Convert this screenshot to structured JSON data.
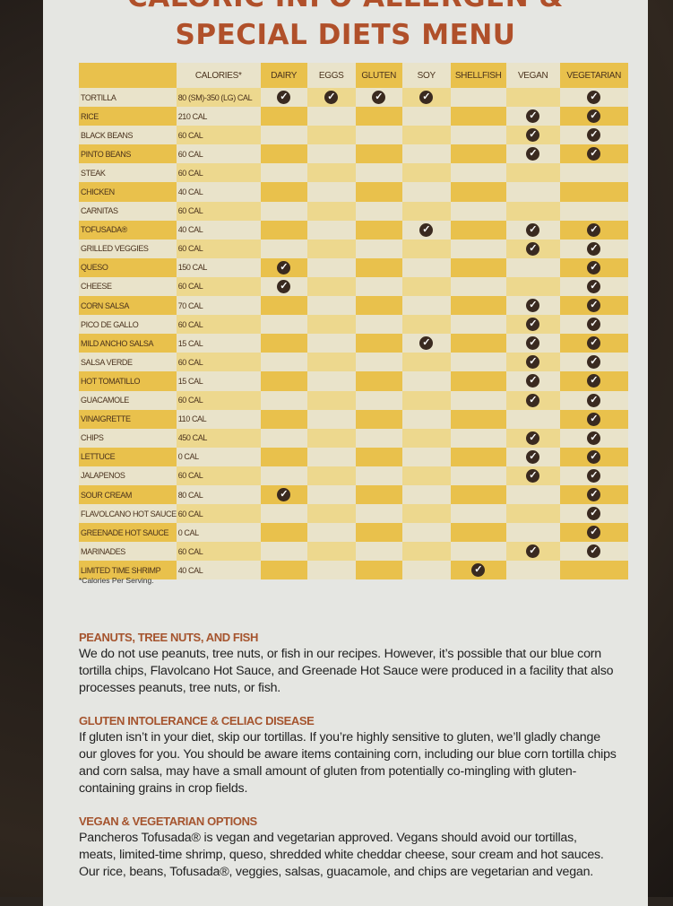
{
  "title": {
    "line1": "CALORIC INFO ALLERGEN &",
    "line2": "SPECIAL DIETS MENU"
  },
  "colors": {
    "title": "#b0502a",
    "strong_yellow": "#e9c14c",
    "pale_yellow": "#edd88e",
    "cream": "#e9e3ca",
    "check": "#3a2a20"
  },
  "table": {
    "headers": [
      "",
      "CALORIES*",
      "DAIRY",
      "EGGS",
      "GLUTEN",
      "SOY",
      "SHELLFISH",
      "VEGAN",
      "VEGETARIAN"
    ],
    "check_icon": "check-circle-icon",
    "rows": [
      {
        "name": "TORTILLA",
        "calories": "80 (SM)-350 (LG) CAL",
        "flags": [
          1,
          1,
          1,
          1,
          0,
          0,
          1
        ]
      },
      {
        "name": "RICE",
        "calories": "210 CAL",
        "flags": [
          0,
          0,
          0,
          0,
          0,
          1,
          1
        ]
      },
      {
        "name": "BLACK BEANS",
        "calories": "60 CAL",
        "flags": [
          0,
          0,
          0,
          0,
          0,
          1,
          1
        ]
      },
      {
        "name": "PINTO BEANS",
        "calories": "60 CAL",
        "flags": [
          0,
          0,
          0,
          0,
          0,
          1,
          1
        ]
      },
      {
        "name": "STEAK",
        "calories": "60 CAL",
        "flags": [
          0,
          0,
          0,
          0,
          0,
          0,
          0
        ]
      },
      {
        "name": "CHICKEN",
        "calories": "40 CAL",
        "flags": [
          0,
          0,
          0,
          0,
          0,
          0,
          0
        ]
      },
      {
        "name": "CARNITAS",
        "calories": "60 CAL",
        "flags": [
          0,
          0,
          0,
          0,
          0,
          0,
          0
        ]
      },
      {
        "name": "TOFUSADA®",
        "calories": "40 CAL",
        "flags": [
          0,
          0,
          0,
          1,
          0,
          1,
          1
        ]
      },
      {
        "name": "GRILLED VEGGIES",
        "calories": "60 CAL",
        "flags": [
          0,
          0,
          0,
          0,
          0,
          1,
          1
        ]
      },
      {
        "name": "QUESO",
        "calories": "150 CAL",
        "flags": [
          1,
          0,
          0,
          0,
          0,
          0,
          1
        ]
      },
      {
        "name": "CHEESE",
        "calories": "60 CAL",
        "flags": [
          1,
          0,
          0,
          0,
          0,
          0,
          1
        ]
      },
      {
        "name": "CORN SALSA",
        "calories": "70 CAL",
        "flags": [
          0,
          0,
          0,
          0,
          0,
          1,
          1
        ]
      },
      {
        "name": "PICO DE GALLO",
        "calories": "60 CAL",
        "flags": [
          0,
          0,
          0,
          0,
          0,
          1,
          1
        ]
      },
      {
        "name": "MILD ANCHO SALSA",
        "calories": "15 CAL",
        "flags": [
          0,
          0,
          0,
          1,
          0,
          1,
          1
        ]
      },
      {
        "name": "SALSA VERDE",
        "calories": "60 CAL",
        "flags": [
          0,
          0,
          0,
          0,
          0,
          1,
          1
        ]
      },
      {
        "name": "HOT TOMATILLO",
        "calories": "15 CAL",
        "flags": [
          0,
          0,
          0,
          0,
          0,
          1,
          1
        ]
      },
      {
        "name": "GUACAMOLE",
        "calories": "60 CAL",
        "flags": [
          0,
          0,
          0,
          0,
          0,
          1,
          1
        ]
      },
      {
        "name": "VINAIGRETTE",
        "calories": "110 CAL",
        "flags": [
          0,
          0,
          0,
          0,
          0,
          0,
          1
        ]
      },
      {
        "name": "CHIPS",
        "calories": "450 CAL",
        "flags": [
          0,
          0,
          0,
          0,
          0,
          1,
          1
        ]
      },
      {
        "name": "LETTUCE",
        "calories": "0 CAL",
        "flags": [
          0,
          0,
          0,
          0,
          0,
          1,
          1
        ]
      },
      {
        "name": "JALAPENOS",
        "calories": "60 CAL",
        "flags": [
          0,
          0,
          0,
          0,
          0,
          1,
          1
        ]
      },
      {
        "name": "SOUR CREAM",
        "calories": "80 CAL",
        "flags": [
          1,
          0,
          0,
          0,
          0,
          0,
          1
        ]
      },
      {
        "name": "FLAVOLCANO HOT SAUCE",
        "calories": "60 CAL",
        "flags": [
          0,
          0,
          0,
          0,
          0,
          0,
          1
        ]
      },
      {
        "name": "GREENADE HOT SAUCE",
        "calories": "0 CAL",
        "flags": [
          0,
          0,
          0,
          0,
          0,
          0,
          1
        ]
      },
      {
        "name": "MARINADES",
        "calories": "60 CAL",
        "flags": [
          0,
          0,
          0,
          0,
          0,
          1,
          1
        ]
      },
      {
        "name": "LIMITED TIME SHRIMP",
        "calories": "40 CAL",
        "flags": [
          0,
          0,
          0,
          0,
          1,
          0,
          0
        ]
      }
    ],
    "footnote": "*Calories Per Serving."
  },
  "sections": [
    {
      "heading": "PEANUTS, TREE NUTS, AND FISH",
      "body": "We do not use peanuts, tree nuts, or fish in our recipes. However, it’s possible that our blue corn tortilla chips, Flavolcano Hot Sauce, and Greenade Hot Sauce were produced in a facility that also processes peanuts, tree nuts, or fish."
    },
    {
      "heading": "GLUTEN INTOLERANCE & CELIAC DISEASE",
      "body": "If gluten isn’t in your diet, skip our tortillas. If you’re highly sensitive to gluten, we’ll gladly change our gloves for you. You should be aware items containing corn, including our blue corn tortilla chips and corn salsa, may have a small amount of gluten from potentially co-mingling with gluten-containing grains in crop fields."
    },
    {
      "heading": "VEGAN & VEGETARIAN OPTIONS",
      "body": "Pancheros Tofusada® is vegan and vegetarian approved. Vegans should avoid our tortillas, meats, limited-time shrimp, queso, shredded white cheddar cheese, sour cream and hot sauces. Our rice, beans, Tofusada®, veggies, salsas, guacamole, and chips are vegetarian and vegan."
    }
  ]
}
